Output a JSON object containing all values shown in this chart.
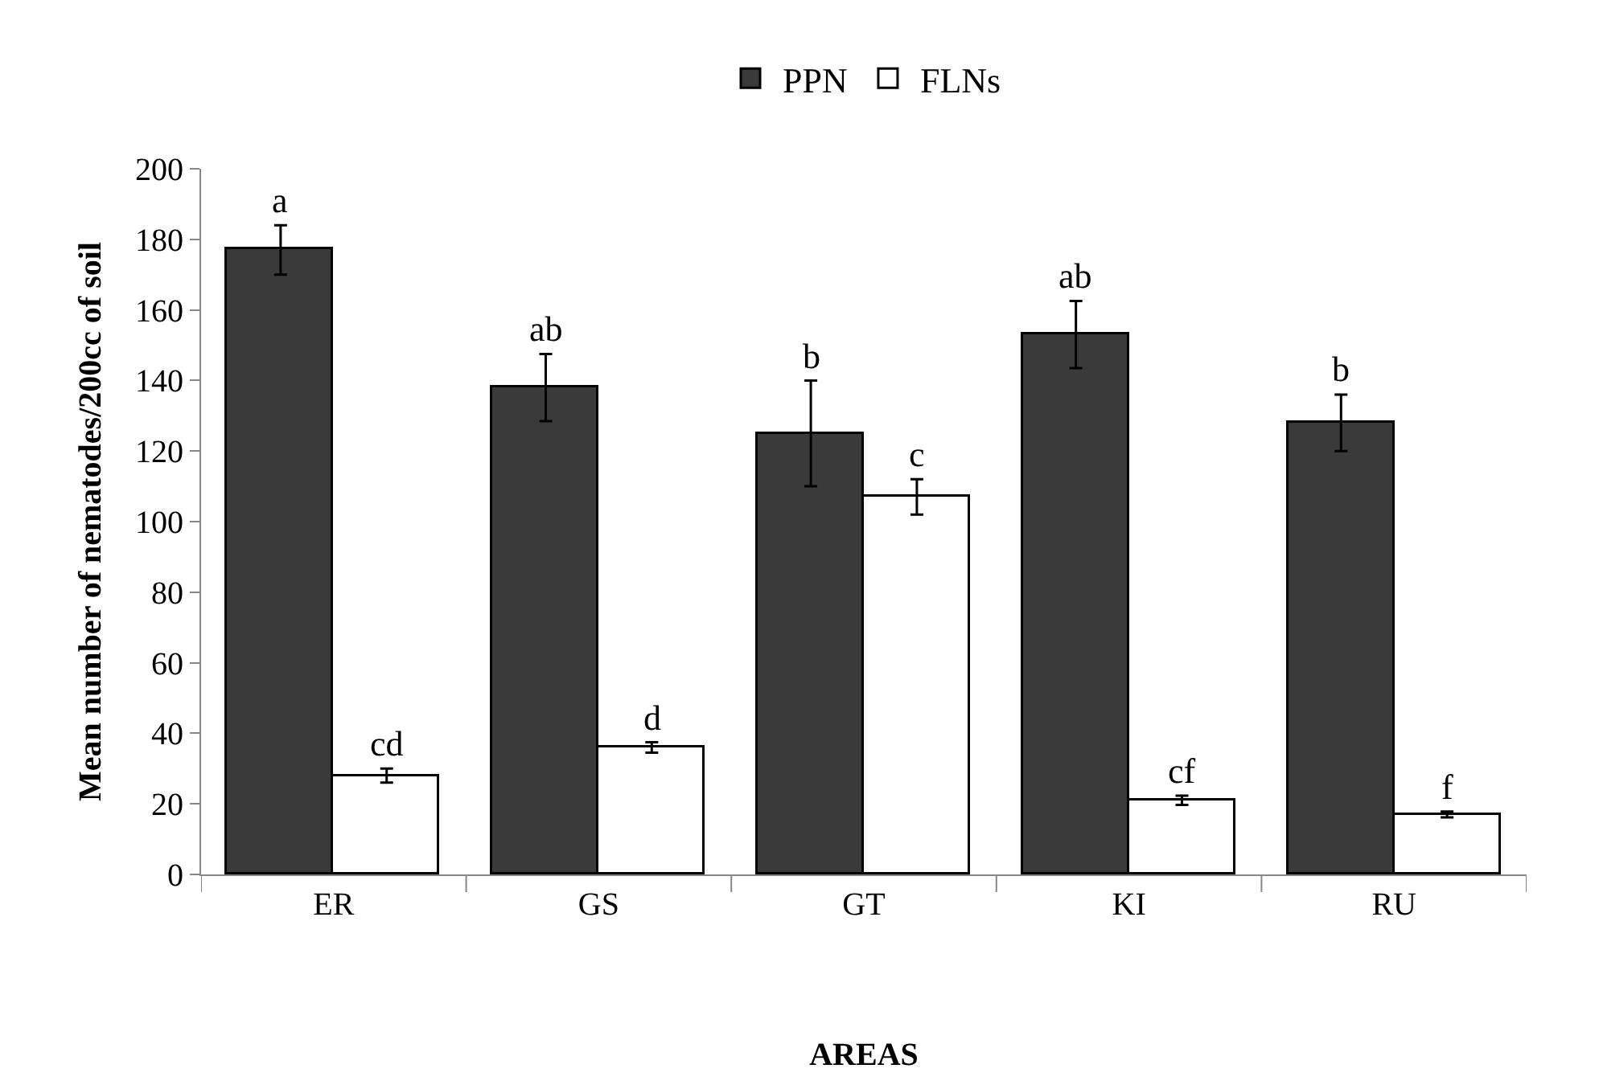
{
  "chart_data": {
    "type": "bar",
    "xlabel": "AREAS",
    "ylabel": "Mean number of nematodes/200cc of soil",
    "categories": [
      "ER",
      "GS",
      "GT",
      "KI",
      "RU"
    ],
    "series": [
      {
        "name": "PPN",
        "color": "#3a3a3a",
        "values": [
          177,
          138,
          125,
          153,
          128
        ],
        "errors": [
          7,
          9.5,
          15,
          9.5,
          8
        ]
      },
      {
        "name": "FLNs",
        "color": "#ffffff",
        "values": [
          28,
          36,
          107,
          21,
          17
        ],
        "errors": [
          2,
          1.5,
          5,
          1.3,
          0.8
        ]
      }
    ],
    "annotations": [
      {
        "text": "a",
        "x": "ER",
        "y": 177
      },
      {
        "text": "cd",
        "x": "ER",
        "y": 28
      },
      {
        "text": "ab",
        "x": "GS",
        "y": 138
      },
      {
        "text": "d",
        "x": "GS",
        "y": 36
      },
      {
        "text": "b",
        "x": "GT",
        "y": 125
      },
      {
        "text": "c",
        "x": "GT",
        "y": 107
      },
      {
        "text": "ab",
        "x": "KI",
        "y": 153
      },
      {
        "text": "cf",
        "x": "KI",
        "y": 21
      },
      {
        "text": "b",
        "x": "RU",
        "y": 128
      },
      {
        "text": "f",
        "x": "RU",
        "y": 17
      }
    ],
    "ylim": [
      0,
      200
    ],
    "yticks": [
      0,
      20,
      40,
      60,
      80,
      100,
      120,
      140,
      160,
      180,
      200
    ],
    "legend": "top"
  }
}
